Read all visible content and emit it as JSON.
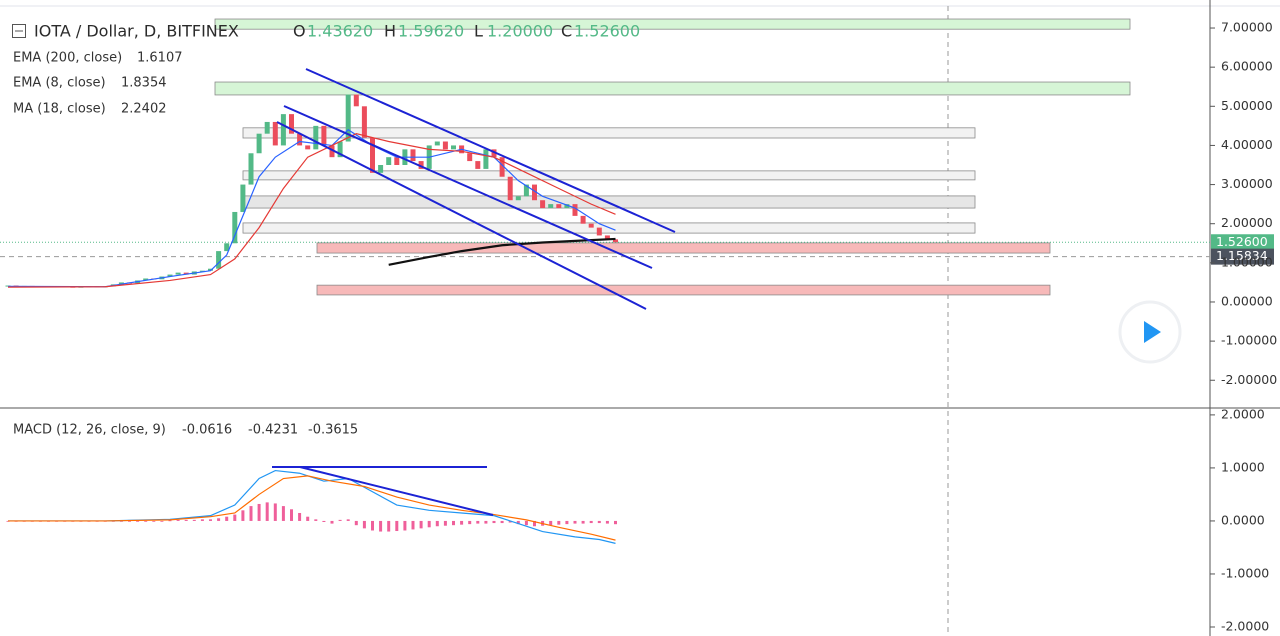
{
  "header": {
    "symbol": "IOTA / Dollar, D, BITFINEX",
    "ohlc": [
      {
        "key": "O",
        "value": "1.43620"
      },
      {
        "key": "H",
        "value": "1.59620"
      },
      {
        "key": "L",
        "value": "1.20000"
      },
      {
        "key": "C",
        "value": "1.52600"
      }
    ]
  },
  "chart_data": [
    {
      "type": "candlestick",
      "up_color": "#53b987",
      "down_color": "#eb4d5c",
      "ylim": [
        -2.709,
        7.716
      ],
      "yticks": [
        {
          "value": 7,
          "label": "7.00000"
        },
        {
          "value": 6,
          "label": "6.00000"
        },
        {
          "value": 5,
          "label": "5.00000"
        },
        {
          "value": 4,
          "label": "4.00000"
        },
        {
          "value": 3,
          "label": "3.00000"
        },
        {
          "value": 2,
          "label": "2.00000"
        },
        {
          "value": 1,
          "label": "1.00000"
        },
        {
          "value": 0,
          "label": "0.00000"
        },
        {
          "value": -1,
          "label": "-1.00000"
        },
        {
          "value": -2,
          "label": "-2.00000"
        }
      ],
      "closes": [
        0.42,
        0.4,
        0.41,
        0.4,
        0.39,
        0.4,
        0.4,
        0.39,
        0.38,
        0.39,
        0.4,
        0.38,
        0.4,
        0.45,
        0.5,
        0.48,
        0.55,
        0.6,
        0.58,
        0.65,
        0.7,
        0.75,
        0.7,
        0.78,
        0.8,
        0.85,
        1.3,
        1.5,
        2.3,
        3.0,
        3.8,
        4.3,
        4.6,
        4.0,
        4.8,
        4.3,
        4.0,
        3.9,
        4.5,
        4.0,
        3.7,
        4.1,
        5.3,
        5.0,
        4.2,
        3.3,
        3.5,
        3.7,
        3.5,
        3.9,
        3.6,
        3.4,
        4.0,
        4.1,
        3.9,
        4.0,
        3.8,
        3.6,
        3.4,
        3.9,
        3.7,
        3.2,
        2.6,
        2.7,
        3.0,
        2.6,
        2.4,
        2.5,
        2.4,
        2.5,
        2.2,
        2.0,
        1.9,
        1.7,
        1.6,
        1.526
      ],
      "series": [
        {
          "name": "EMA (200, close)",
          "legend_value": "1.6107",
          "color": "#111111",
          "x": [
            47,
            52,
            56,
            61,
            66,
            71,
            75
          ],
          "values": [
            0.95,
            1.15,
            1.3,
            1.45,
            1.52,
            1.57,
            1.6107
          ]
        },
        {
          "name": "EMA (8, close)",
          "legend_value": "1.8354",
          "color": "#2962ff",
          "x": [
            0,
            12,
            20,
            25,
            27,
            29,
            31,
            33,
            36,
            40,
            42,
            45,
            48,
            52,
            56,
            60,
            63,
            66,
            70,
            73,
            75
          ],
          "values": [
            0.4,
            0.39,
            0.65,
            0.8,
            1.2,
            2.2,
            3.2,
            3.7,
            4.1,
            4.0,
            4.4,
            4.0,
            3.7,
            3.7,
            3.9,
            3.7,
            3.1,
            2.7,
            2.4,
            2.0,
            1.8354
          ]
        },
        {
          "name": "MA (18, close)",
          "legend_value": "2.2402",
          "color": "#e53935",
          "x": [
            0,
            12,
            20,
            25,
            28,
            31,
            34,
            37,
            40,
            43,
            47,
            52,
            56,
            60,
            64,
            68,
            72,
            75
          ],
          "values": [
            0.38,
            0.39,
            0.55,
            0.7,
            1.1,
            1.9,
            2.9,
            3.7,
            4.0,
            4.3,
            4.1,
            3.9,
            3.85,
            3.7,
            3.3,
            2.9,
            2.5,
            2.2402
          ]
        }
      ],
      "zones": [
        {
          "low": 6.97,
          "high": 7.23,
          "color": "#d6f5d6"
        },
        {
          "low": 5.29,
          "high": 5.62,
          "color": "#d6f5d6"
        },
        {
          "low": 4.19,
          "high": 4.45,
          "color": "#f2f2f2"
        },
        {
          "low": 3.12,
          "high": 3.35,
          "color": "#f2f2f2"
        },
        {
          "low": 2.4,
          "high": 2.71,
          "color": "#e6e6e6"
        },
        {
          "low": 1.76,
          "high": 2.02,
          "color": "#f2f2f2"
        },
        {
          "low": 1.25,
          "high": 1.51,
          "color": "#f7b9b9"
        },
        {
          "low": 0.18,
          "high": 0.43,
          "color": "#f7b9b9"
        }
      ],
      "last_price": {
        "value": 1.526,
        "label": "1.52600"
      },
      "crosshair": {
        "value": 1.15834,
        "label": "1.15834"
      }
    },
    {
      "type": "macd",
      "title": "MACD (12, 26, close, 9)",
      "ylim": [
        -2.17,
        2.13
      ],
      "yticks": [
        {
          "value": 2,
          "label": "2.0000"
        },
        {
          "value": 1,
          "label": "1.0000"
        },
        {
          "value": 0,
          "label": "0.0000"
        },
        {
          "value": -1,
          "label": "-1.0000"
        },
        {
          "value": -2,
          "label": "-2.0000"
        }
      ],
      "histogram": {
        "name": "-0.0616",
        "color": "#ef5f9a",
        "values": [
          0,
          0,
          0,
          0,
          0,
          0,
          0,
          0,
          0,
          0,
          0,
          0,
          0,
          0,
          0,
          0,
          0,
          0,
          0,
          0,
          0.01,
          0.02,
          0.02,
          0.02,
          0.03,
          0.03,
          0.05,
          0.08,
          0.12,
          0.2,
          0.28,
          0.32,
          0.35,
          0.33,
          0.28,
          0.22,
          0.15,
          0.08,
          0.03,
          -0.02,
          -0.05,
          0.02,
          0.03,
          -0.08,
          -0.14,
          -0.18,
          -0.2,
          -0.2,
          -0.19,
          -0.18,
          -0.16,
          -0.14,
          -0.12,
          -0.1,
          -0.09,
          -0.08,
          -0.07,
          -0.06,
          -0.05,
          -0.05,
          -0.04,
          -0.04,
          -0.03,
          -0.06,
          -0.08,
          -0.1,
          -0.09,
          -0.08,
          -0.07,
          -0.06,
          -0.05,
          -0.05,
          -0.04,
          -0.04,
          -0.05,
          -0.0616
        ]
      },
      "series": [
        {
          "name": "-0.4231",
          "color": "#2196f3",
          "x": [
            0,
            12,
            20,
            25,
            28,
            31,
            33,
            36,
            39,
            42,
            45,
            48,
            52,
            56,
            60,
            63,
            66,
            70,
            73,
            75
          ],
          "values": [
            0,
            0,
            0.03,
            0.1,
            0.3,
            0.8,
            0.95,
            0.9,
            0.75,
            0.8,
            0.55,
            0.3,
            0.2,
            0.15,
            0.1,
            -0.05,
            -0.2,
            -0.3,
            -0.35,
            -0.4231
          ]
        },
        {
          "name": "-0.3615",
          "color": "#ff6d00",
          "x": [
            0,
            12,
            20,
            25,
            28,
            31,
            34,
            37,
            40,
            44,
            48,
            52,
            56,
            60,
            64,
            68,
            72,
            75
          ],
          "values": [
            0,
            0,
            0.02,
            0.08,
            0.15,
            0.5,
            0.8,
            0.85,
            0.75,
            0.65,
            0.45,
            0.3,
            0.2,
            0.12,
            0.02,
            -0.12,
            -0.25,
            -0.3615
          ]
        }
      ]
    }
  ]
}
